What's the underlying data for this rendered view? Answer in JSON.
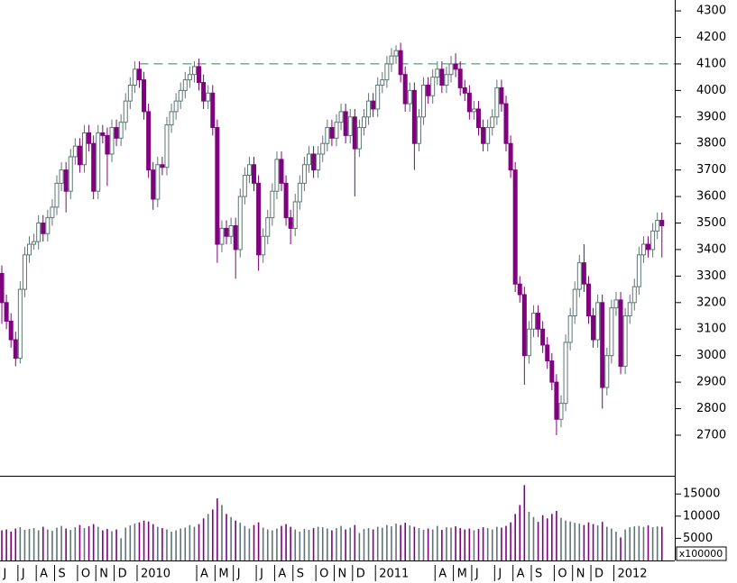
{
  "chart_data": [
    {
      "type": "candlestick",
      "open": [
        3310,
        3200,
        3130,
        3060,
        2990,
        3250,
        3380,
        3420,
        3430,
        3500,
        3460,
        3520,
        3560,
        3650,
        3700,
        3620,
        3750,
        3790,
        3720,
        3840,
        3800,
        3620,
        3840,
        3830,
        3760,
        3860,
        3820,
        3880,
        3960,
        4020,
        4080,
        4040,
        3920,
        3700,
        3590,
        3720,
        3710,
        3870,
        3920,
        3960,
        4000,
        4040,
        4060,
        4090,
        4030,
        3960,
        3990,
        3860,
        3420,
        3480,
        3450,
        3490,
        3400,
        3600,
        3680,
        3720,
        3650,
        3380,
        3450,
        3520,
        3620,
        3740,
        3650,
        3520,
        3480,
        3580,
        3650,
        3720,
        3760,
        3700,
        3760,
        3800,
        3860,
        3820,
        3880,
        3920,
        3830,
        3900,
        3780,
        3860,
        3900,
        3960,
        3930,
        4020,
        4040,
        4100,
        4130,
        4150,
        4060,
        3950,
        4000,
        3800,
        3900,
        4020,
        3980,
        4050,
        4080,
        4020,
        4060,
        4100,
        4080,
        4010,
        3990,
        3920,
        3930,
        3860,
        3800,
        3860,
        3900,
        4010,
        3950,
        3800,
        3700,
        3270,
        3230,
        3000,
        3100,
        3160,
        3100,
        3040,
        2980,
        2900,
        2760,
        2820,
        3050,
        3150,
        3250,
        3350,
        3270,
        3150,
        3060,
        3200,
        2880,
        3000,
        3180,
        3210,
        2960,
        3150,
        3200,
        3260,
        3380,
        3420,
        3400,
        3470,
        3510
      ],
      "high": [
        3340,
        3230,
        3160,
        3090,
        3280,
        3410,
        3450,
        3460,
        3530,
        3530,
        3550,
        3590,
        3680,
        3730,
        3730,
        3780,
        3820,
        3820,
        3870,
        3870,
        3830,
        3870,
        3870,
        3860,
        3890,
        3890,
        3910,
        3990,
        4050,
        4110,
        4110,
        4070,
        3950,
        3730,
        3750,
        3750,
        3900,
        3950,
        3990,
        4030,
        4070,
        4090,
        4110,
        4120,
        4060,
        4020,
        4020,
        3890,
        3510,
        3510,
        3520,
        3520,
        3630,
        3710,
        3750,
        3750,
        3680,
        3480,
        3550,
        3650,
        3770,
        3770,
        3680,
        3550,
        3610,
        3680,
        3750,
        3790,
        3790,
        3790,
        3830,
        3890,
        3890,
        3910,
        3950,
        3950,
        3930,
        3930,
        3890,
        3930,
        3990,
        3990,
        4050,
        4070,
        4130,
        4160,
        4170,
        4180,
        4090,
        4030,
        4030,
        3930,
        4050,
        4050,
        4080,
        4110,
        4110,
        4090,
        4130,
        4140,
        4110,
        4040,
        4020,
        3960,
        3960,
        3890,
        3890,
        3930,
        4040,
        4040,
        3980,
        3830,
        3730,
        3300,
        3260,
        3130,
        3190,
        3190,
        3130,
        3070,
        3010,
        2930,
        2850,
        3080,
        3180,
        3280,
        3380,
        3420,
        3300,
        3180,
        3230,
        3230,
        3030,
        3210,
        3240,
        3240,
        3180,
        3230,
        3290,
        3410,
        3450,
        3450,
        3500,
        3540,
        3540
      ],
      "low": [
        3120,
        3100,
        3030,
        2960,
        2970,
        3220,
        3350,
        3400,
        3400,
        3430,
        3430,
        3490,
        3530,
        3620,
        3540,
        3590,
        3720,
        3690,
        3690,
        3770,
        3590,
        3590,
        3800,
        3640,
        3730,
        3790,
        3790,
        3850,
        3930,
        3990,
        4010,
        3890,
        3670,
        3550,
        3560,
        3680,
        3680,
        3840,
        3890,
        3930,
        3970,
        4010,
        4030,
        4000,
        3930,
        3930,
        3830,
        3350,
        3390,
        3420,
        3420,
        3290,
        3370,
        3570,
        3650,
        3620,
        3320,
        3350,
        3420,
        3490,
        3590,
        3620,
        3490,
        3420,
        3450,
        3550,
        3620,
        3690,
        3670,
        3670,
        3730,
        3770,
        3790,
        3790,
        3850,
        3800,
        3800,
        3600,
        3750,
        3830,
        3870,
        3900,
        3900,
        3990,
        4010,
        4070,
        4100,
        4030,
        3920,
        3920,
        3700,
        3770,
        3870,
        3950,
        3950,
        4020,
        3990,
        3990,
        4030,
        4050,
        3980,
        3960,
        3890,
        3890,
        3830,
        3770,
        3770,
        3830,
        3870,
        3920,
        3770,
        3670,
        3240,
        3200,
        2890,
        2970,
        3070,
        3070,
        3010,
        2950,
        2870,
        2700,
        2730,
        2790,
        3020,
        3120,
        3220,
        3240,
        3120,
        3030,
        3030,
        2800,
        2850,
        2970,
        3150,
        2930,
        2930,
        3120,
        3170,
        3230,
        3350,
        3370,
        3370,
        3440,
        3370
      ],
      "close": [
        3200,
        3130,
        3060,
        2990,
        3250,
        3380,
        3420,
        3430,
        3500,
        3460,
        3520,
        3560,
        3650,
        3700,
        3620,
        3750,
        3790,
        3720,
        3840,
        3800,
        3620,
        3840,
        3830,
        3760,
        3860,
        3820,
        3880,
        3960,
        4020,
        4080,
        4040,
        3920,
        3700,
        3590,
        3720,
        3710,
        3870,
        3920,
        3960,
        4000,
        4040,
        4060,
        4090,
        4030,
        3960,
        3990,
        3860,
        3420,
        3480,
        3450,
        3490,
        3400,
        3600,
        3680,
        3720,
        3650,
        3380,
        3450,
        3520,
        3620,
        3740,
        3650,
        3520,
        3480,
        3580,
        3650,
        3720,
        3760,
        3700,
        3760,
        3800,
        3860,
        3820,
        3880,
        3920,
        3830,
        3900,
        3780,
        3860,
        3900,
        3960,
        3930,
        4020,
        4040,
        4100,
        4130,
        4150,
        4060,
        3950,
        4000,
        3800,
        3900,
        4020,
        3980,
        4050,
        4080,
        4020,
        4060,
        4100,
        4080,
        4010,
        3990,
        3920,
        3930,
        3860,
        3800,
        3860,
        3900,
        4010,
        3950,
        3800,
        3700,
        3270,
        3230,
        3000,
        3100,
        3160,
        3100,
        3040,
        2980,
        2900,
        2760,
        2820,
        3050,
        3150,
        3250,
        3350,
        3270,
        3150,
        3060,
        3200,
        2880,
        3000,
        3180,
        3210,
        2960,
        3150,
        3200,
        3260,
        3380,
        3420,
        3400,
        3470,
        3510,
        3490
      ],
      "up_color": "#5f7575",
      "down_color": "#800080",
      "reference_line": {
        "value": 4100,
        "color": "#2e8b57"
      },
      "xlim": [
        -0.4,
        146.8
      ],
      "ylim": [
        2547,
        4341
      ],
      "yticks": [
        2700,
        2800,
        2900,
        3000,
        3100,
        3200,
        3300,
        3400,
        3500,
        3600,
        3700,
        3800,
        3900,
        4000,
        4100,
        4200,
        4300
      ]
    },
    {
      "type": "bar",
      "values": [
        6800,
        7000,
        6500,
        7200,
        7500,
        6900,
        7100,
        7300,
        6800,
        7600,
        7000,
        6700,
        7400,
        7800,
        7200,
        6900,
        7500,
        8000,
        7300,
        7700,
        8200,
        7600,
        6800,
        7100,
        6600,
        7000,
        5000,
        7400,
        7900,
        8300,
        8600,
        9000,
        8800,
        8200,
        7600,
        7300,
        7000,
        6500,
        6800,
        7200,
        7400,
        8000,
        7600,
        8200,
        9500,
        10500,
        11500,
        14000,
        12500,
        10500,
        9800,
        9000,
        8500,
        7800,
        7200,
        8000,
        8600,
        7400,
        7000,
        6800,
        7200,
        7800,
        8200,
        7600,
        7000,
        6500,
        7100,
        6900,
        7300,
        7600,
        7500,
        7200,
        6800,
        7300,
        7800,
        7000,
        7400,
        8000,
        6200,
        7100,
        7300,
        7000,
        7600,
        7400,
        8000,
        7700,
        8300,
        8000,
        8500,
        7900,
        7600,
        7300,
        6900,
        7200,
        7000,
        7800,
        6900,
        7500,
        7400,
        7700,
        7300,
        7000,
        7200,
        6800,
        7100,
        7500,
        7300,
        7000,
        7600,
        7400,
        7800,
        8600,
        10500,
        12500,
        17000,
        11000,
        9800,
        8700,
        10200,
        9500,
        10500,
        11200,
        9600,
        9000,
        8800,
        8500,
        8300,
        8000,
        8600,
        8200,
        7900,
        8700,
        7600,
        7200,
        6500,
        5200,
        7000,
        7500,
        7700,
        7800,
        7600,
        7900,
        7500,
        7700,
        7600
      ],
      "unit_label": "x100000",
      "xlim": [
        -0.4,
        146.8
      ],
      "ylim": [
        0,
        18900
      ],
      "yticks": [
        5000,
        10000,
        15000
      ],
      "xticks": [
        {
          "value": 0,
          "label": "J"
        },
        {
          "value": 4,
          "label": "J"
        },
        {
          "value": 8,
          "label": "A"
        },
        {
          "value": 12,
          "label": "S"
        },
        {
          "value": 17,
          "label": "O"
        },
        {
          "value": 21,
          "label": "N"
        },
        {
          "value": 25,
          "label": "D"
        },
        {
          "value": 30,
          "label": "2010"
        },
        {
          "value": 43,
          "label": "A"
        },
        {
          "value": 47,
          "label": "M"
        },
        {
          "value": 51,
          "label": "J"
        },
        {
          "value": 56,
          "label": "J"
        },
        {
          "value": 60,
          "label": "A"
        },
        {
          "value": 64,
          "label": "S"
        },
        {
          "value": 69,
          "label": "O"
        },
        {
          "value": 73,
          "label": "N"
        },
        {
          "value": 77,
          "label": "D"
        },
        {
          "value": 82,
          "label": "2011"
        },
        {
          "value": 95,
          "label": "A"
        },
        {
          "value": 99,
          "label": "M"
        },
        {
          "value": 103,
          "label": "J"
        },
        {
          "value": 108,
          "label": "J"
        },
        {
          "value": 112,
          "label": "A"
        },
        {
          "value": 116,
          "label": "S"
        },
        {
          "value": 121,
          "label": "O"
        },
        {
          "value": 125,
          "label": "N"
        },
        {
          "value": 129,
          "label": "D"
        },
        {
          "value": 134,
          "label": "2012"
        }
      ]
    }
  ]
}
